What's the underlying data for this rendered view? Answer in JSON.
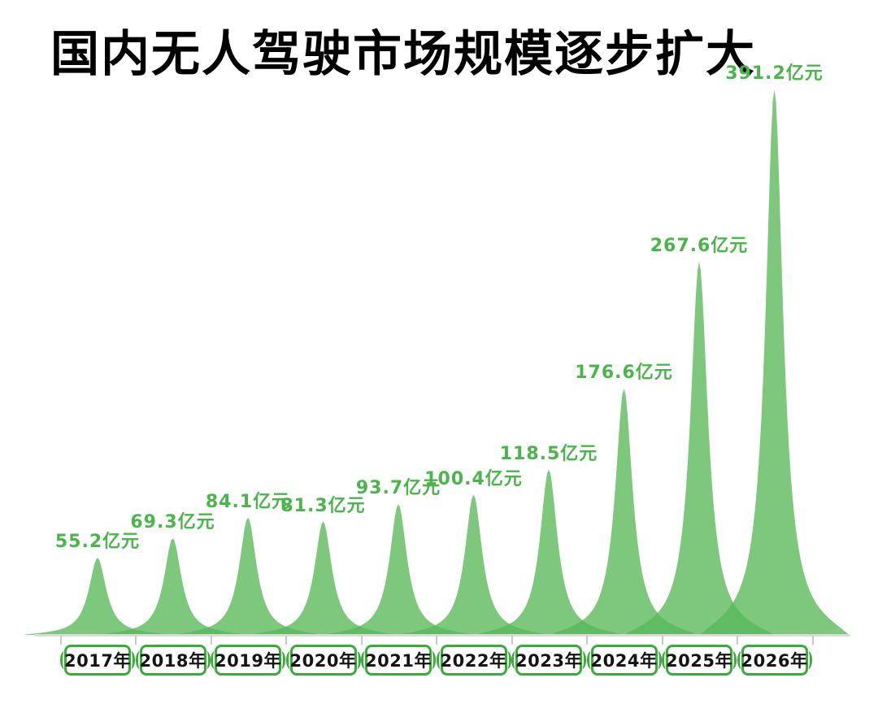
{
  "title": "国内无人驾驶市场规模逐步扩大",
  "chart_data": {
    "type": "area",
    "title": "国内无人驾驶市场规模逐步扩大",
    "categories": [
      "2017年",
      "2018年",
      "2019年",
      "2020年",
      "2021年",
      "2022年",
      "2023年",
      "2024年",
      "2025年",
      "2026年"
    ],
    "values": [
      55.2,
      69.3,
      84.1,
      81.3,
      93.7,
      100.4,
      118.5,
      176.6,
      267.6,
      391.2
    ],
    "unit_suffix": "亿元",
    "value_labels": [
      "55.2亿元",
      "69.3亿元",
      "84.1亿元",
      "81.3亿元",
      "93.7亿元",
      "100.4亿元",
      "118.5亿元",
      "176.6亿元",
      "267.6亿元",
      "391.2亿元"
    ],
    "xlabel": "",
    "ylabel": "",
    "ylim": [
      0,
      400
    ],
    "grid": false,
    "legend": "none",
    "colors": {
      "peak_fill": "#58B958",
      "peak_fill_opacity": 0.78,
      "value_label_text": "#4CB44C",
      "year_box_border": "#3BAB3B",
      "year_box_text": "#141414",
      "axis_line": "#DBDBDB",
      "tick": "#C9C9C9",
      "title_text": "#000000",
      "background": "#FFFFFF"
    }
  }
}
